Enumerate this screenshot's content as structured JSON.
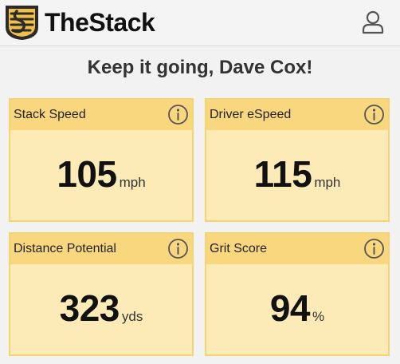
{
  "header": {
    "brand": "TheStack",
    "logo_icon": "stack-logo-icon",
    "account_icon": "user-icon",
    "colors": {
      "logo_gold": "#f0c048",
      "logo_dark": "#2b2b2b"
    }
  },
  "greeting": "Keep it going, Dave Cox!",
  "cards": [
    {
      "title": "Stack Speed",
      "value": "105",
      "unit": "mph",
      "icon": "info-icon"
    },
    {
      "title": "Driver eSpeed",
      "value": "115",
      "unit": "mph",
      "icon": "info-icon"
    },
    {
      "title": "Distance Potential",
      "value": "323",
      "unit": "yds",
      "icon": "info-icon"
    },
    {
      "title": "Grit Score",
      "value": "94",
      "unit": "%",
      "icon": "info-icon"
    }
  ],
  "colors": {
    "card_bg": "#fcebb6",
    "card_header": "#f8d77e",
    "card_border": "#f5d36f"
  }
}
